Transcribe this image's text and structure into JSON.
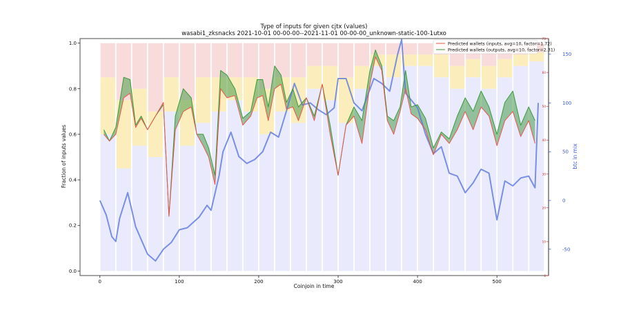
{
  "chart_data": {
    "type": "line",
    "title": "Type of inputs for given cjtx (values)",
    "subtitle": "wasabi1_zksnacks 2021-10-01 00-00-00--2021-11-01 00-00-00_unknown-static-100-1utxo",
    "xlabel": "Coinjoin in time",
    "ylabel": "Fraction of inputs values",
    "y2label": "btc in mix",
    "xlim": [
      -25,
      565
    ],
    "ylim": [
      -0.02,
      1.02
    ],
    "y2lim": [
      -77,
      166
    ],
    "y3lim": [
      0,
      70
    ],
    "xticks": [
      0,
      100,
      200,
      300,
      400,
      500
    ],
    "yticks": [
      0.0,
      0.2,
      0.4,
      0.6,
      0.8,
      1.0
    ],
    "y2ticks": [
      -50,
      0,
      50,
      100,
      150
    ],
    "y3ticks": [
      0,
      10,
      20,
      30,
      40,
      50,
      60,
      70
    ],
    "legend_position": "top-right",
    "grid": false,
    "colors": {
      "inputs": "#e8554e",
      "outputs": "#3a9a3a",
      "band": "#4d9d4d",
      "btc": "#5b78dc",
      "bars_blue": "#8f96ee",
      "bars_yellow": "#fbe8a6",
      "bars_pink": "#f6d0cf",
      "axis_right": "#3b5bdb",
      "axis_red": "#d62728"
    },
    "series": [
      {
        "name": "Predicted wallets (inputs, avg=10, factor=1.72)",
        "x": [
          5,
          12,
          20,
          30,
          38,
          45,
          52,
          60,
          70,
          80,
          87,
          95,
          105,
          115,
          122,
          130,
          137,
          145,
          152,
          160,
          170,
          180,
          190,
          198,
          205,
          212,
          220,
          228,
          235,
          243,
          250,
          260,
          270,
          280,
          290,
          300,
          310,
          320,
          330,
          340,
          347,
          355,
          362,
          370,
          378,
          385,
          392,
          400,
          410,
          420,
          430,
          440,
          450,
          460,
          470,
          480,
          490,
          500,
          510,
          520,
          530,
          540,
          548
        ],
        "values": [
          0.6,
          0.57,
          0.6,
          0.76,
          0.78,
          0.63,
          0.67,
          0.62,
          0.68,
          0.74,
          0.24,
          0.62,
          0.7,
          0.72,
          0.6,
          0.55,
          0.5,
          0.38,
          0.8,
          0.76,
          0.77,
          0.64,
          0.68,
          0.76,
          0.77,
          0.66,
          0.8,
          0.82,
          0.71,
          0.72,
          0.66,
          0.76,
          0.66,
          0.82,
          0.6,
          0.42,
          0.64,
          0.68,
          0.56,
          0.82,
          0.94,
          0.88,
          0.66,
          0.6,
          0.7,
          0.8,
          0.69,
          0.67,
          0.62,
          0.51,
          0.6,
          0.56,
          0.62,
          0.7,
          0.62,
          0.72,
          0.68,
          0.55,
          0.66,
          0.7,
          0.59,
          0.66,
          0.56
        ]
      },
      {
        "name": "Predicted wallets (outputs, avg=10, factor=2.31)",
        "x": [
          5,
          12,
          20,
          30,
          38,
          45,
          52,
          60,
          70,
          80,
          87,
          95,
          105,
          115,
          122,
          130,
          137,
          145,
          152,
          160,
          170,
          180,
          190,
          198,
          205,
          212,
          220,
          228,
          235,
          243,
          250,
          260,
          270,
          280,
          290,
          300,
          310,
          320,
          330,
          340,
          347,
          355,
          362,
          370,
          378,
          385,
          392,
          400,
          410,
          420,
          430,
          440,
          450,
          460,
          470,
          480,
          490,
          500,
          510,
          520,
          530,
          540,
          548
        ],
        "values": [
          0.62,
          0.57,
          0.63,
          0.85,
          0.84,
          0.64,
          0.68,
          0.62,
          0.68,
          0.73,
          0.24,
          0.68,
          0.8,
          0.76,
          0.6,
          0.6,
          0.54,
          0.42,
          0.88,
          0.86,
          0.8,
          0.67,
          0.7,
          0.84,
          0.84,
          0.72,
          0.9,
          0.86,
          0.74,
          0.8,
          0.72,
          0.76,
          0.68,
          0.82,
          0.64,
          0.42,
          0.64,
          0.72,
          0.66,
          0.88,
          0.97,
          0.9,
          0.68,
          0.66,
          0.72,
          0.88,
          0.72,
          0.73,
          0.67,
          0.54,
          0.61,
          0.58,
          0.68,
          0.76,
          0.7,
          0.79,
          0.72,
          0.6,
          0.74,
          0.79,
          0.64,
          0.72,
          0.66
        ]
      },
      {
        "name": "btc in mix",
        "axis": "right",
        "x": [
          0,
          8,
          15,
          20,
          25,
          35,
          45,
          60,
          70,
          80,
          90,
          100,
          110,
          125,
          135,
          140,
          150,
          155,
          165,
          175,
          185,
          195,
          205,
          215,
          225,
          235,
          245,
          255,
          265,
          275,
          285,
          295,
          300,
          310,
          320,
          330,
          345,
          355,
          365,
          375,
          380,
          385,
          395,
          400,
          410,
          420,
          430,
          440,
          450,
          460,
          470,
          480,
          490,
          500,
          510,
          520,
          530,
          540,
          548,
          552
        ],
        "values": [
          0,
          -15,
          -37,
          -42,
          -18,
          8,
          -27,
          -55,
          -62,
          -50,
          -43,
          -30,
          -28,
          -17,
          -5,
          -10,
          25,
          50,
          70,
          45,
          38,
          42,
          50,
          70,
          65,
          92,
          120,
          98,
          100,
          93,
          88,
          95,
          125,
          125,
          100,
          92,
          125,
          120,
          112,
          150,
          165,
          110,
          100,
          95,
          68,
          48,
          55,
          28,
          25,
          8,
          18,
          32,
          28,
          -20,
          20,
          15,
          23,
          25,
          13,
          100
        ]
      },
      {
        "name": "",
        "type": "bar",
        "stack": [
          "bars_blue",
          "bars_yellow",
          "bars_pink"
        ],
        "x": [
          0,
          20,
          40,
          60,
          80,
          100,
          120,
          140,
          160,
          180,
          200,
          220,
          240,
          260,
          280,
          300,
          320,
          340,
          360,
          380,
          400,
          420,
          440,
          460,
          480,
          500,
          520,
          540
        ],
        "bars_blue": [
          0.6,
          0.45,
          0.55,
          0.5,
          0.7,
          0.55,
          0.65,
          0.7,
          0.75,
          0.7,
          0.6,
          0.7,
          0.65,
          0.8,
          0.75,
          0.65,
          0.8,
          0.9,
          0.85,
          0.9,
          0.9,
          0.85,
          0.8,
          0.85,
          0.8,
          0.85,
          0.9,
          0.92
        ],
        "bars_yellow": [
          0.25,
          0.3,
          0.25,
          0.2,
          0.15,
          0.2,
          0.2,
          0.15,
          0.1,
          0.15,
          0.2,
          0.15,
          0.2,
          0.1,
          0.15,
          0.2,
          0.1,
          0.05,
          0.1,
          0.05,
          0.05,
          0.1,
          0.1,
          0.08,
          0.1,
          0.08,
          0.05,
          0.04
        ]
      }
    ]
  }
}
